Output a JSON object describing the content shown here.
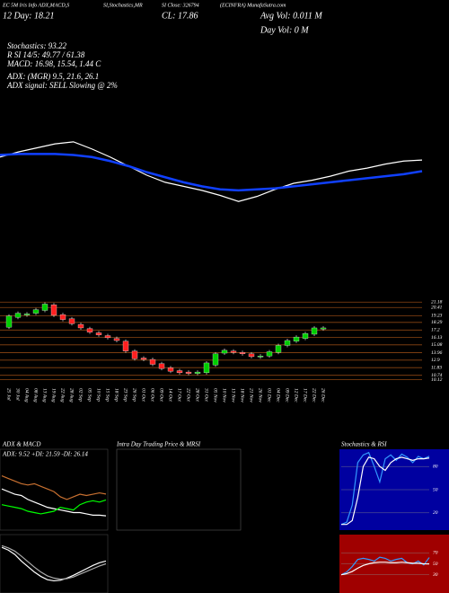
{
  "header": {
    "indicators_left": "EC 5M Iris Info ADX,MACD,S",
    "indicators_mid": "SI,Stochastics,MR",
    "close_small": "SI Close: 326794",
    "symbol": "(ECINFRA) MunafaSutra.com",
    "twelve_day": "12 Day: 18.21",
    "close": "CL: 17.86",
    "avg_vol": "Avg Vol: 0.011 M",
    "day_vol": "Day Vol: 0  M",
    "stochastics": "Stochastics: 93.22",
    "rsi": "R      SI 14/5: 49.77 / 61.38",
    "macd": "MACD: 16.98, 15.54, 1.44  C",
    "adx": "ADX:              (MGR) 9.5, 21.6, 26.1",
    "adx_signal": "ADX  signal: SELL Slowing @ 2%"
  },
  "chart_data": [
    {
      "type": "line",
      "ylim": [
        12,
        20
      ],
      "series": [
        {
          "color": "#ffffff",
          "values": [
            17.8,
            18.3,
            18.7,
            19.1,
            19.3,
            18.6,
            17.8,
            16.9,
            16.0,
            15.3,
            14.9,
            14.5,
            14.0,
            13.4,
            13.9,
            14.6,
            15.2,
            15.5,
            15.9,
            16.4,
            16.7,
            17.1,
            17.4,
            17.5
          ]
        },
        {
          "color": "#1040ff",
          "values": [
            18.0,
            18.1,
            18.1,
            18.1,
            18.0,
            17.8,
            17.4,
            16.9,
            16.3,
            15.8,
            15.3,
            14.9,
            14.6,
            14.5,
            14.6,
            14.7,
            14.9,
            15.1,
            15.3,
            15.5,
            15.7,
            15.9,
            16.1,
            16.4
          ]
        }
      ]
    },
    {
      "type": "candlestick",
      "ylim": [
        9.8,
        21.6
      ],
      "grid_color": "#8b4513",
      "yticks": [
        21.18,
        20.41,
        19.23,
        18.29,
        17.2,
        16.13,
        15.08,
        13.96,
        12.9,
        11.83,
        10.74,
        10.12
      ],
      "categories": [
        "25 Jul",
        "30 Jul",
        "04 Aug",
        "08 Aug",
        "13 Aug",
        "19 Aug",
        "22 Aug",
        "28 Aug",
        "02 Sep",
        "05 Sep",
        "10 Sep",
        "15 Sep",
        "18 Sep",
        "23 Sep",
        "26 Sep",
        "01 Oct",
        "06 Oct",
        "09 Oct",
        "14 Oct",
        "17 Oct",
        "22 Oct",
        "28 Oct",
        "31 Oct",
        "05 Nov",
        "10 Nov",
        "13 Nov",
        "18 Nov",
        "21 Nov",
        "26 Nov",
        "01 Dec",
        "04 Dec",
        "09 Dec",
        "12 Dec",
        "17 Dec",
        "22 Dec",
        "26 Dec"
      ],
      "open": [
        17.6,
        19.0,
        19.4,
        19.6,
        20.0,
        20.8,
        19.4,
        18.8,
        18.0,
        17.4,
        16.8,
        16.4,
        16.0,
        15.6,
        14.2,
        13.2,
        13.0,
        12.4,
        11.8,
        11.4,
        11.2,
        11.0,
        11.1,
        12.2,
        13.9,
        14.2,
        14.0,
        13.8,
        13.4,
        13.5,
        14.0,
        15.0,
        15.6,
        16.0,
        16.6,
        17.4
      ],
      "close": [
        19.2,
        19.6,
        19.5,
        20.1,
        20.9,
        19.3,
        18.7,
        18.1,
        17.5,
        16.9,
        16.5,
        16.1,
        15.7,
        14.2,
        13.1,
        13.0,
        12.3,
        11.7,
        11.3,
        11.1,
        11.0,
        11.2,
        12.5,
        13.8,
        14.3,
        14.0,
        13.8,
        13.4,
        13.5,
        14.1,
        15.0,
        15.7,
        16.2,
        16.7,
        17.5,
        17.5
      ],
      "up_color": "#00cc00",
      "down_color": "#ff2020"
    },
    {
      "type": "line",
      "title": "ADX  & MACD",
      "label": "ADX: 9.52  +DI: 21.59  -DI: 26.14",
      "ylim": [
        0,
        50
      ],
      "series": [
        {
          "color": "#ffffff",
          "values": [
            30,
            28,
            26,
            25,
            22,
            20,
            18,
            16,
            15,
            14,
            13,
            12,
            12,
            11,
            10,
            10,
            9.5
          ]
        },
        {
          "color": "#00ff00",
          "values": [
            18,
            17,
            16,
            15,
            13,
            12,
            11,
            12,
            13,
            16,
            15,
            14,
            18,
            20,
            21,
            20,
            21.6
          ]
        },
        {
          "color": "#c87030",
          "values": [
            40,
            38,
            36,
            34,
            33,
            34,
            32,
            30,
            28,
            24,
            22,
            24,
            26,
            25,
            26,
            27,
            26.1
          ]
        }
      ]
    },
    {
      "type": "line",
      "ylim": [
        12,
        21
      ],
      "series": [
        {
          "color": "#ffffff",
          "values": [
            19.5,
            19.0,
            18.2,
            17.0,
            16.0,
            15.0,
            14.2,
            13.6,
            13.4,
            13.5,
            13.9,
            14.4,
            15.0,
            15.6,
            16.2,
            16.7,
            17.0
          ]
        },
        {
          "color": "#aaaaaa",
          "values": [
            19.8,
            19.4,
            18.8,
            17.9,
            16.9,
            15.9,
            15.0,
            14.3,
            13.9,
            13.7,
            13.8,
            14.1,
            14.6,
            15.1,
            15.6,
            16.1,
            16.5
          ]
        }
      ]
    },
    {
      "type": "none",
      "title": "Intra  Day Trading Price  & MRSI"
    },
    {
      "type": "line",
      "title": "Stochastics  & RSI",
      "ylim": [
        0,
        100
      ],
      "yticks": [
        80,
        50,
        20
      ],
      "series": [
        {
          "color": "#3399ff",
          "values": [
            5,
            8,
            30,
            85,
            95,
            98,
            80,
            60,
            90,
            95,
            88,
            96,
            92,
            85,
            93,
            90,
            93.22
          ]
        },
        {
          "color": "#ffffff",
          "values": [
            5,
            5,
            10,
            40,
            80,
            92,
            90,
            80,
            75,
            85,
            90,
            92,
            90,
            88,
            90,
            90,
            91
          ]
        }
      ]
    },
    {
      "type": "line",
      "ylim": [
        0,
        100
      ],
      "yticks": [
        70,
        50,
        30
      ],
      "series": [
        {
          "color": "#3399ff",
          "values": [
            30,
            35,
            45,
            58,
            60,
            58,
            55,
            62,
            60,
            55,
            58,
            60,
            52,
            50,
            55,
            48,
            61.38
          ]
        },
        {
          "color": "#ffffff",
          "values": [
            30,
            32,
            36,
            42,
            47,
            50,
            52,
            53,
            53,
            52,
            52,
            53,
            52,
            51,
            51,
            50,
            49.77
          ]
        }
      ]
    }
  ]
}
